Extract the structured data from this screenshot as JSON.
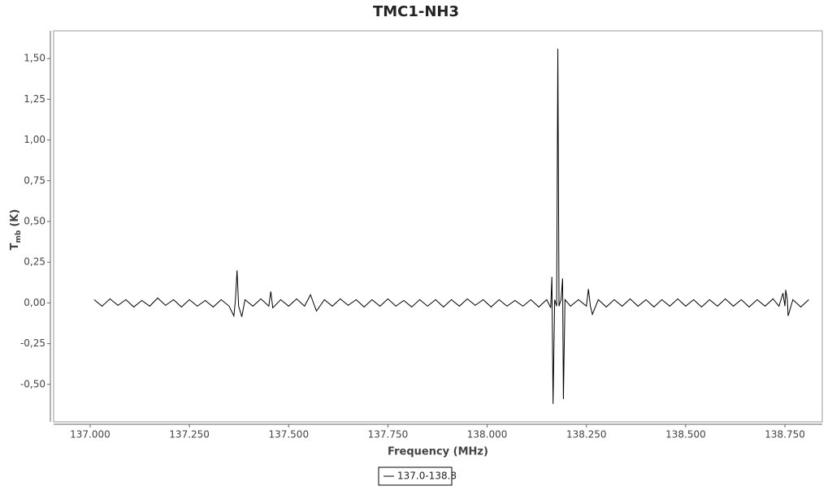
{
  "chart_data": {
    "type": "line",
    "title": "TMC1-NH3",
    "x_label": "Frequency (MHz)",
    "y_label": {
      "main": "T",
      "sub": "mb",
      "unit": "(K)"
    },
    "xlim": [
      136.908,
      138.844
    ],
    "ylim": [
      -0.73,
      1.67
    ],
    "xticks": [
      {
        "value": 137.0,
        "label": "137.000"
      },
      {
        "value": 137.25,
        "label": "137.250"
      },
      {
        "value": 137.5,
        "label": "137.500"
      },
      {
        "value": 137.75,
        "label": "137.750"
      },
      {
        "value": 138.0,
        "label": "138.000"
      },
      {
        "value": 138.25,
        "label": "138.250"
      },
      {
        "value": 138.5,
        "label": "138.500"
      },
      {
        "value": 138.75,
        "label": "138.750"
      }
    ],
    "yticks": [
      {
        "value": -0.5,
        "label": "-0,50"
      },
      {
        "value": -0.25,
        "label": "-0,25"
      },
      {
        "value": 0,
        "label": "0,00"
      },
      {
        "value": 0.25,
        "label": "0,25"
      },
      {
        "value": 0.5,
        "label": "0,50"
      },
      {
        "value": 0.75,
        "label": "0,75"
      },
      {
        "value": 1.0,
        "label": "1,00"
      },
      {
        "value": 1.25,
        "label": "1,25"
      },
      {
        "value": 1.5,
        "label": "1,50"
      }
    ],
    "x": [
      137.01,
      137.03,
      137.05,
      137.07,
      137.09,
      137.11,
      137.13,
      137.15,
      137.17,
      137.19,
      137.21,
      137.23,
      137.25,
      137.27,
      137.29,
      137.31,
      137.33,
      137.35,
      137.362,
      137.366,
      137.37,
      137.374,
      137.382,
      137.39,
      137.41,
      137.43,
      137.45,
      137.455,
      137.46,
      137.48,
      137.5,
      137.52,
      137.54,
      137.555,
      137.57,
      137.59,
      137.61,
      137.63,
      137.65,
      137.67,
      137.69,
      137.71,
      137.73,
      137.75,
      137.77,
      137.79,
      137.81,
      137.83,
      137.85,
      137.87,
      137.89,
      137.91,
      137.93,
      137.95,
      137.97,
      137.99,
      138.01,
      138.03,
      138.05,
      138.07,
      138.09,
      138.11,
      138.13,
      138.15,
      138.16,
      138.163,
      138.166,
      138.17,
      138.175,
      138.178,
      138.181,
      138.186,
      138.19,
      138.192,
      138.196,
      138.21,
      138.23,
      138.25,
      138.255,
      138.26,
      138.265,
      138.28,
      138.3,
      138.32,
      138.34,
      138.36,
      138.38,
      138.4,
      138.42,
      138.44,
      138.46,
      138.48,
      138.5,
      138.52,
      138.54,
      138.56,
      138.58,
      138.6,
      138.62,
      138.64,
      138.66,
      138.68,
      138.7,
      138.72,
      138.735,
      138.745,
      138.75,
      138.752,
      138.756,
      138.758,
      138.77,
      138.79,
      138.81
    ],
    "series": [
      {
        "name": "137.0-138.8",
        "color": "#000000",
        "values": [
          0.02,
          -0.02,
          0.025,
          -0.015,
          0.02,
          -0.025,
          0.015,
          -0.02,
          0.03,
          -0.015,
          0.02,
          -0.025,
          0.02,
          -0.02,
          0.015,
          -0.025,
          0.02,
          -0.02,
          -0.08,
          0.02,
          0.2,
          -0.02,
          -0.085,
          0.02,
          -0.02,
          0.025,
          -0.02,
          0.07,
          -0.03,
          0.02,
          -0.02,
          0.025,
          -0.02,
          0.05,
          -0.05,
          0.02,
          -0.02,
          0.025,
          -0.015,
          0.02,
          -0.025,
          0.02,
          -0.02,
          0.025,
          -0.02,
          0.015,
          -0.025,
          0.02,
          -0.02,
          0.02,
          -0.025,
          0.02,
          -0.02,
          0.025,
          -0.015,
          0.02,
          -0.025,
          0.02,
          -0.02,
          0.015,
          -0.02,
          0.02,
          -0.025,
          0.02,
          -0.03,
          0.16,
          -0.62,
          0.02,
          -0.02,
          1.56,
          -0.02,
          0.02,
          0.15,
          -0.59,
          0.02,
          -0.02,
          0.02,
          -0.02,
          0.085,
          -0.02,
          -0.07,
          0.02,
          -0.025,
          0.02,
          -0.02,
          0.025,
          -0.02,
          0.02,
          -0.025,
          0.02,
          -0.02,
          0.025,
          -0.02,
          0.02,
          -0.025,
          0.02,
          -0.02,
          0.025,
          -0.02,
          0.02,
          -0.025,
          0.02,
          -0.02,
          0.025,
          -0.02,
          0.06,
          -0.02,
          0.08,
          0.02,
          -0.08,
          0.02,
          -0.025,
          0.02
        ]
      }
    ]
  }
}
